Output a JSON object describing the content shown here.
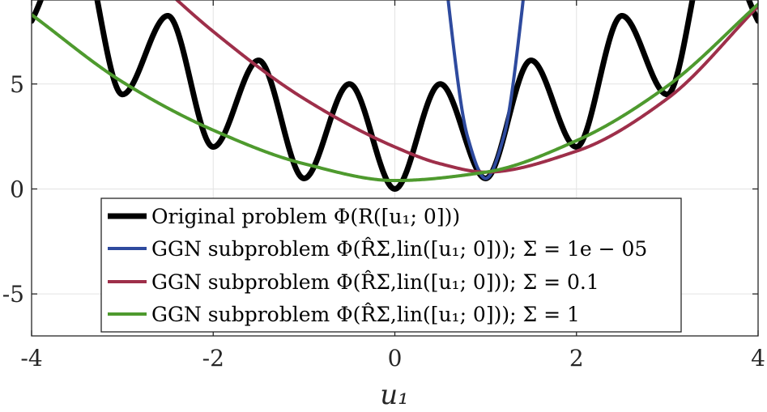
{
  "chart_data": {
    "type": "line",
    "title": "",
    "xlabel": "u₁",
    "ylabel": "",
    "xlim": [
      -4,
      4
    ],
    "ylim": [
      -7,
      9
    ],
    "grid": true,
    "legend_position": "bottom-left inside",
    "xticks": [
      -4,
      -2,
      0,
      2,
      4
    ],
    "xtick_labels": [
      "-4",
      "-2",
      "0",
      "2",
      "4"
    ],
    "yticks": [
      -5,
      0,
      5
    ],
    "ytick_labels": [
      "-5",
      "0",
      "5"
    ],
    "series": [
      {
        "name": "Original problem Φ(R([u₁; 0]))",
        "color": "#000000",
        "x": [
          -4.0,
          -3.5,
          -3.0,
          -2.5,
          -2.0,
          -1.5,
          -1.0,
          -0.5,
          0.0,
          0.5,
          1.0,
          1.5,
          2.0,
          2.5,
          3.0,
          3.5,
          4.0
        ],
        "values": [
          8.0,
          12.25,
          4.5,
          8.25,
          2.0,
          6.125,
          0.5,
          5.0,
          0.0,
          5.0,
          0.5,
          6.125,
          2.0,
          8.25,
          4.5,
          12.25,
          8.0
        ]
      },
      {
        "name": "GGN subproblem Φ(R̂Σ,lin([u₁; 0])); Σ = 1e − 05",
        "color": "#2e4a9e",
        "x": [
          0.4,
          0.6,
          0.8,
          1.0,
          1.2,
          1.4,
          1.6
        ],
        "values": [
          18.5,
          8.5,
          2.5,
          0.5,
          2.5,
          8.5,
          18.5
        ]
      },
      {
        "name": "GGN subproblem Φ(R̂Σ,lin([u₁; 0])); Σ = 0.1",
        "color": "#9e2f4a",
        "x": [
          -4.0,
          -3.0,
          -2.0,
          -1.0,
          0.0,
          0.5,
          1.0,
          2.0,
          3.0,
          4.0
        ],
        "values": [
          15.3,
          11.4,
          7.5,
          4.3,
          2.0,
          1.2,
          0.8,
          1.8,
          4.3,
          8.7
        ]
      },
      {
        "name": "GGN subproblem Φ(R̂Σ,lin([u₁; 0])); Σ = 1",
        "color": "#4e9a2e",
        "x": [
          -4.0,
          -3.0,
          -2.0,
          -1.0,
          0.0,
          1.0,
          2.0,
          3.0,
          4.0
        ],
        "values": [
          8.3,
          5.1,
          2.8,
          1.2,
          0.4,
          0.8,
          2.3,
          4.9,
          8.8
        ]
      }
    ]
  }
}
